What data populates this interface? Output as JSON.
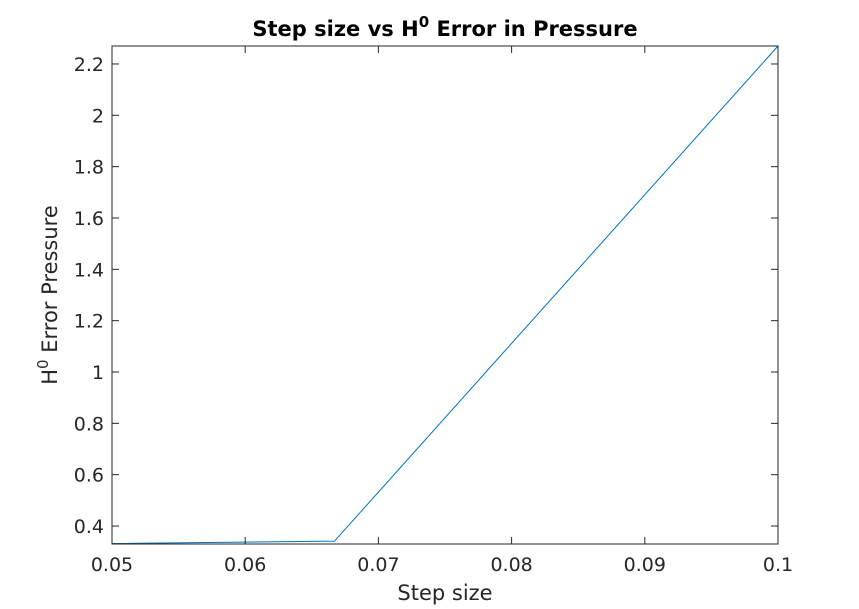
{
  "chart_data": {
    "type": "line",
    "title_parts": {
      "prefix": "Step size vs H",
      "sup": "0",
      "suffix": " Error in Pressure"
    },
    "xlabel": "Step size",
    "ylabel_parts": {
      "prefix": "H",
      "sup": "0",
      "suffix": " Error Pressure"
    },
    "xlim": [
      0.05,
      0.1
    ],
    "ylim": [
      0.33,
      2.27
    ],
    "x_ticks": [
      0.05,
      0.06,
      0.07,
      0.08,
      0.09,
      0.1
    ],
    "x_tick_labels": [
      "0.05",
      "0.06",
      "0.07",
      "0.08",
      "0.09",
      "0.1"
    ],
    "y_ticks": [
      0.4,
      0.6,
      0.8,
      1,
      1.2,
      1.4,
      1.6,
      1.8,
      2,
      2.2
    ],
    "y_tick_labels": [
      "0.4",
      "0.6",
      "0.8",
      "1",
      "1.2",
      "1.4",
      "1.6",
      "1.8",
      "2",
      "2.2"
    ],
    "grid": false,
    "legend": "none",
    "series": [
      {
        "color": "#0072BD",
        "x": [
          0.05,
          0.0667,
          0.1
        ],
        "y": [
          0.332,
          0.341,
          2.27
        ]
      }
    ]
  }
}
